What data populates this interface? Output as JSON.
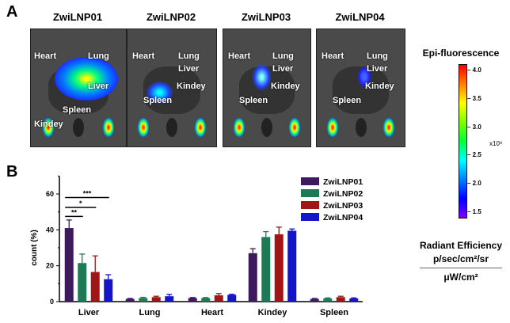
{
  "panel_a": {
    "label": "A",
    "images": [
      {
        "title": "ZwiLNP01",
        "organs": [
          "Heart",
          "Lung",
          "Liver",
          "Spleen",
          "Kindey"
        ]
      },
      {
        "title": "ZwiLNP02",
        "organs": [
          "Heart",
          "Lung",
          "Liver",
          "Spleen",
          "Kindey"
        ]
      },
      {
        "title": "ZwiLNP03",
        "organs": [
          "Heart",
          "Lung",
          "Liver",
          "Spleen",
          "Kindey"
        ]
      },
      {
        "title": "ZwiLNP04",
        "organs": [
          "Heart",
          "Lung",
          "Liver",
          "Spleen",
          "Kindey"
        ]
      }
    ]
  },
  "colorbar": {
    "title": "Epi-fluorescence",
    "ticks": [
      "4.0",
      "3.5",
      "3.0",
      "2.5",
      "2.0",
      "1.5"
    ],
    "multiplier": "x10⁹",
    "range": [
      1.4,
      4.1
    ],
    "unit_top": "Radiant Efficiency",
    "unit_mid": "p/sec/cm²/sr",
    "unit_bottom": "μW/cm²"
  },
  "panel_b": {
    "label": "B"
  },
  "chart_data": {
    "type": "bar",
    "ylabel": "count (%)",
    "xlabel": "",
    "ylim": [
      0,
      70
    ],
    "yticks": [
      0,
      20,
      40,
      60
    ],
    "categories": [
      "Liver",
      "Lung",
      "Heart",
      "Kindey",
      "Spleen"
    ],
    "legend_position": "top-right",
    "series": [
      {
        "name": "ZwiLNP01",
        "color": "#3d1a5e",
        "values": [
          41,
          1.5,
          2,
          27,
          1.5
        ],
        "errors": [
          4.5,
          0.3,
          0.3,
          2.5,
          0.3
        ]
      },
      {
        "name": "ZwiLNP02",
        "color": "#1e7a55",
        "values": [
          21.5,
          2,
          2,
          36,
          1.8
        ],
        "errors": [
          5,
          0.4,
          0.3,
          3,
          0.3
        ]
      },
      {
        "name": "ZwiLNP03",
        "color": "#a01515",
        "values": [
          16.5,
          2.5,
          3.5,
          37.5,
          2.5
        ],
        "errors": [
          9,
          0.5,
          1,
          4,
          0.5
        ]
      },
      {
        "name": "ZwiLNP04",
        "color": "#1414c8",
        "values": [
          12.5,
          3,
          3.8,
          39.5,
          1.8
        ],
        "errors": [
          2.5,
          1,
          0.3,
          1,
          0.3
        ]
      }
    ],
    "annotations": [
      "**",
      "*",
      "***"
    ]
  }
}
